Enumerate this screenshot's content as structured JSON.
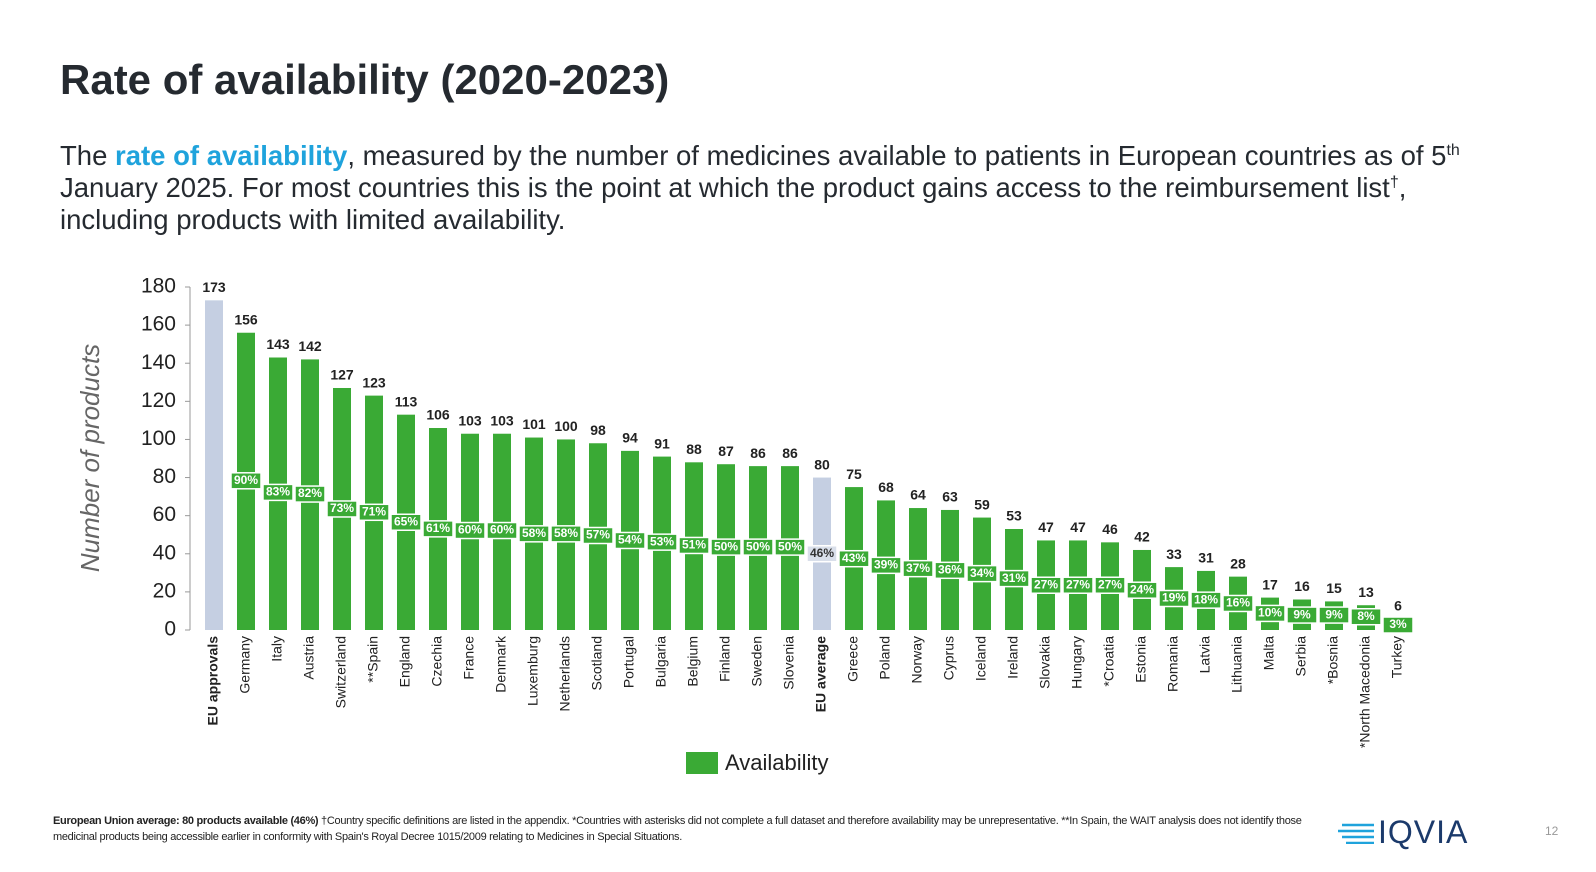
{
  "slide": {
    "title": "Rate of availability (2020-2023)",
    "subtitle_parts": [
      "The ",
      "rate of availability",
      ", measured by the number of medicines available to patients in European countries as of 5",
      "th",
      " January 2025. For most countries this is the point at which the product gains access to the reimbursement list",
      "†",
      ", including products with limited availability."
    ],
    "footnote_bold": "European Union average: 80 products available (46%)",
    "footnote_text": " †Country specific definitions are listed in the appendix. *Countries with asterisks did not complete a full dataset and therefore availability may be unrepresentative. **In Spain, the WAIT analysis does not identify those medicinal products being accessible earlier in conformity with Spain's Royal Decree 1015/2009 relating to Medicines in Special Situations.",
    "logo": "IQVIA",
    "page_number": "12"
  },
  "chart_data": {
    "type": "bar",
    "y_label": "Number of products",
    "ylim": [
      0,
      180
    ],
    "yticks": [
      0,
      20,
      40,
      60,
      80,
      100,
      120,
      140,
      160,
      180
    ],
    "legend": "bottom",
    "categories": [
      "EU approvals",
      "Germany",
      "Italy",
      "Austria",
      "Switzerland",
      "**Spain",
      "England",
      "Czechia",
      "France",
      "Denmark",
      "Luxemburg",
      "Netherlands",
      "Scotland",
      "Portugal",
      "Bulgaria",
      "Belgium",
      "Finland",
      "Sweden",
      "Slovenia",
      "EU average",
      "Greece",
      "Poland",
      "Norway",
      "Cyprus",
      "Iceland",
      "Ireland",
      "Slovakia",
      "Hungary",
      "*Croatia",
      "Estonia",
      "Romania",
      "Latvia",
      "Lithuania",
      "Malta",
      "Serbia",
      "*Bosnia",
      "*North Macedonia",
      "Turkey"
    ],
    "series": [
      {
        "name": "Availability",
        "color": "#3aaa35",
        "values": [
          173,
          156,
          143,
          142,
          127,
          123,
          113,
          106,
          103,
          103,
          101,
          100,
          98,
          94,
          91,
          88,
          87,
          86,
          86,
          80,
          75,
          68,
          64,
          63,
          59,
          53,
          47,
          47,
          46,
          42,
          33,
          31,
          28,
          17,
          16,
          15,
          13,
          6
        ],
        "colors": [
          "#c5cfe2",
          "#3aaa35",
          "#3aaa35",
          "#3aaa35",
          "#3aaa35",
          "#3aaa35",
          "#3aaa35",
          "#3aaa35",
          "#3aaa35",
          "#3aaa35",
          "#3aaa35",
          "#3aaa35",
          "#3aaa35",
          "#3aaa35",
          "#3aaa35",
          "#3aaa35",
          "#3aaa35",
          "#3aaa35",
          "#3aaa35",
          "#c5cfe2",
          "#3aaa35",
          "#3aaa35",
          "#3aaa35",
          "#3aaa35",
          "#3aaa35",
          "#3aaa35",
          "#3aaa35",
          "#3aaa35",
          "#3aaa35",
          "#3aaa35",
          "#3aaa35",
          "#3aaa35",
          "#3aaa35",
          "#3aaa35",
          "#3aaa35",
          "#3aaa35",
          "#3aaa35",
          "#3aaa35"
        ],
        "shares": [
          null,
          90,
          83,
          82,
          73,
          71,
          65,
          61,
          60,
          60,
          58,
          58,
          57,
          54,
          53,
          51,
          50,
          50,
          50,
          46,
          43,
          39,
          37,
          36,
          34,
          31,
          27,
          27,
          27,
          24,
          19,
          18,
          16,
          10,
          9,
          9,
          8,
          3
        ],
        "share_labels": [
          null,
          "90%",
          "83%",
          "82%",
          "73%",
          "71%",
          "65%",
          "61%",
          "60%",
          "60%",
          "58%",
          "58%",
          "57%",
          "54%",
          "53%",
          "51%",
          "50%",
          "50%",
          "50%",
          "46%",
          "43%",
          "39%",
          "37%",
          "36%",
          "34%",
          "31%",
          "27%",
          "27%",
          "27%",
          "24%",
          "19%",
          "18%",
          "16%",
          "10%",
          "9%",
          "9%",
          "8%",
          "3%"
        ]
      }
    ]
  }
}
